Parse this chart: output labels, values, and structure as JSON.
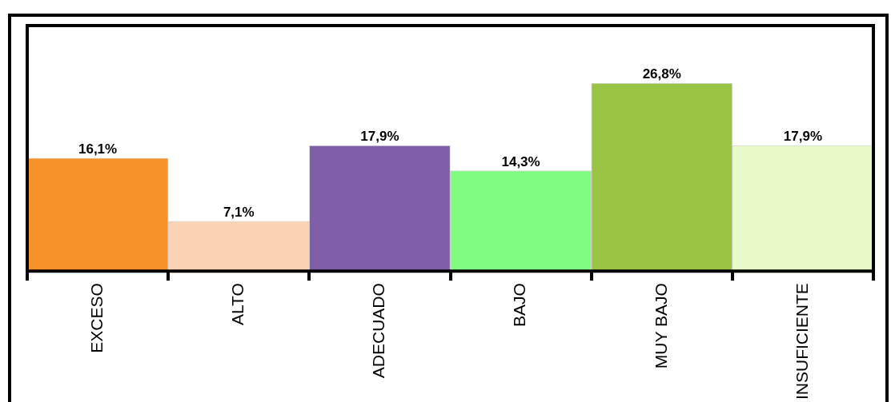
{
  "chart_data": {
    "type": "bar",
    "categories": [
      "EXCESO",
      "ALTO",
      "ADECUADO",
      "BAJO",
      "MUY BAJO",
      "INSUFICIENTE"
    ],
    "values": [
      16.1,
      7.1,
      17.9,
      14.3,
      26.8,
      17.9
    ],
    "colors": [
      "#f7922a",
      "#fbd3b4",
      "#7f5fa8",
      "#80fc80",
      "#99c444",
      "#e8fbc8"
    ],
    "value_labels": [
      "16,1%",
      "7,1%",
      "17,9%",
      "14,3%",
      "26,8%",
      "17,9%"
    ],
    "legend": false
  }
}
